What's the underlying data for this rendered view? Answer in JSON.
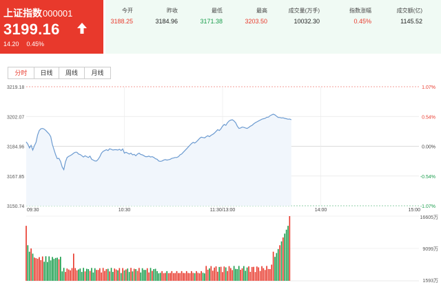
{
  "quote": {
    "name": "上证指数",
    "code": "000001",
    "price": "3199.16",
    "change": "14.20",
    "change_pct": "0.45%",
    "trend_icon": "up-arrow-icon",
    "bg_color": "#e8392c"
  },
  "stats": [
    {
      "label": "今开",
      "value": "3188.25",
      "color": "#e8392c"
    },
    {
      "label": "昨收",
      "value": "3184.96",
      "color": "#222222"
    },
    {
      "label": "最低",
      "value": "3171.38",
      "color": "#1a9d4c"
    },
    {
      "label": "最高",
      "value": "3203.50",
      "color": "#e8392c"
    },
    {
      "label": "成交量(万手)",
      "value": "10032.30",
      "color": "#222222"
    },
    {
      "label": "指数涨幅",
      "value": "0.45%",
      "color": "#e8392c"
    },
    {
      "label": "成交额(亿)",
      "value": "1145.52",
      "color": "#222222"
    }
  ],
  "tabs": [
    {
      "label": "分时",
      "active": true
    },
    {
      "label": "日线",
      "active": false
    },
    {
      "label": "周线",
      "active": false
    },
    {
      "label": "月线",
      "active": false
    }
  ],
  "colors": {
    "up": "#e8392c",
    "down": "#1a9d4c",
    "line": "#6b9ad0",
    "fill": "#f1f6fc"
  },
  "chart_data": {
    "type": "line",
    "price_ticks": [
      "3219.18",
      "3202.07",
      "3184.96",
      "3167.85",
      "3150.74"
    ],
    "pct_ticks": [
      "1.07%",
      "0.54%",
      "0.00%",
      "-0.54%",
      "-1.07%"
    ],
    "time_ticks": [
      "09:30",
      "10:30",
      "11:30/13:00",
      "14:00",
      "15:00"
    ],
    "ylim": [
      3150.74,
      3219.18
    ],
    "prev_close": 3184.96,
    "volume_ticks": [
      "16605万",
      "9099万",
      "1593万"
    ],
    "volume_max": 16605,
    "price_line": [
      [
        0,
        3187.5
      ],
      [
        1,
        3186.2
      ],
      [
        2,
        3184.0
      ],
      [
        3,
        3185.5
      ],
      [
        4,
        3182.8
      ],
      [
        5,
        3185.2
      ],
      [
        6,
        3187.2
      ],
      [
        7,
        3191.5
      ],
      [
        8,
        3194.0
      ],
      [
        9,
        3195.0
      ],
      [
        10,
        3195.2
      ],
      [
        11,
        3194.8
      ],
      [
        12,
        3194.0
      ],
      [
        13,
        3193.0
      ],
      [
        14,
        3192.0
      ],
      [
        15,
        3190.5
      ],
      [
        16,
        3186.0
      ],
      [
        17,
        3183.0
      ],
      [
        18,
        3180.0
      ],
      [
        19,
        3177.8
      ],
      [
        20,
        3178.0
      ],
      [
        21,
        3176.2
      ],
      [
        22,
        3173.0
      ],
      [
        23,
        3171.5
      ],
      [
        24,
        3176.0
      ],
      [
        25,
        3178.5
      ],
      [
        26,
        3179.2
      ],
      [
        27,
        3179.6
      ],
      [
        28,
        3180.2
      ],
      [
        29,
        3181.0
      ],
      [
        30,
        3181.5
      ],
      [
        31,
        3181.5
      ],
      [
        32,
        3180.5
      ],
      [
        33,
        3180.2
      ],
      [
        34,
        3179.5
      ],
      [
        35,
        3178.8
      ],
      [
        36,
        3179.5
      ],
      [
        37,
        3179.0
      ],
      [
        38,
        3178.5
      ],
      [
        39,
        3179.3
      ],
      [
        40,
        3177.5
      ],
      [
        41,
        3177.0
      ],
      [
        42,
        3176.5
      ],
      [
        43,
        3176.5
      ],
      [
        44,
        3177.5
      ],
      [
        45,
        3179.0
      ],
      [
        46,
        3181.0
      ],
      [
        47,
        3182.0
      ],
      [
        48,
        3182.5
      ],
      [
        49,
        3183.0
      ],
      [
        50,
        3182.5
      ],
      [
        51,
        3183.5
      ],
      [
        52,
        3183.2
      ],
      [
        53,
        3182.8
      ],
      [
        54,
        3183.0
      ],
      [
        55,
        3183.0
      ],
      [
        56,
        3182.8
      ],
      [
        57,
        3183.2
      ],
      [
        58,
        3182.5
      ],
      [
        59,
        3183.4
      ],
      [
        60,
        3181.0
      ],
      [
        61,
        3181.5
      ],
      [
        62,
        3181.0
      ],
      [
        63,
        3180.5
      ],
      [
        64,
        3181.0
      ],
      [
        65,
        3180.0
      ],
      [
        66,
        3180.3
      ],
      [
        67,
        3179.5
      ],
      [
        68,
        3180.5
      ],
      [
        69,
        3181.0
      ],
      [
        70,
        3180.2
      ],
      [
        71,
        3180.0
      ],
      [
        72,
        3179.5
      ],
      [
        73,
        3179.0
      ],
      [
        74,
        3179.0
      ],
      [
        75,
        3179.3
      ],
      [
        76,
        3178.8
      ],
      [
        77,
        3179.0
      ],
      [
        78,
        3178.5
      ],
      [
        79,
        3177.8
      ],
      [
        80,
        3177.5
      ],
      [
        81,
        3176.5
      ],
      [
        82,
        3176.3
      ],
      [
        83,
        3176.5
      ],
      [
        84,
        3177.0
      ],
      [
        85,
        3177.3
      ],
      [
        86,
        3177.0
      ],
      [
        87,
        3177.2
      ],
      [
        88,
        3177.5
      ],
      [
        89,
        3178.0
      ],
      [
        90,
        3178.2
      ],
      [
        91,
        3178.5
      ],
      [
        92,
        3178.5
      ],
      [
        93,
        3179.0
      ],
      [
        94,
        3180.0
      ],
      [
        95,
        3180.5
      ],
      [
        96,
        3181.5
      ],
      [
        97,
        3182.5
      ],
      [
        98,
        3183.5
      ],
      [
        99,
        3184.5
      ],
      [
        100,
        3185.5
      ],
      [
        101,
        3186.5
      ],
      [
        102,
        3187.2
      ],
      [
        103,
        3186.8
      ],
      [
        104,
        3187.5
      ],
      [
        105,
        3188.5
      ],
      [
        106,
        3189.5
      ],
      [
        107,
        3190.2
      ],
      [
        108,
        3190.0
      ],
      [
        109,
        3189.8
      ],
      [
        110,
        3190.5
      ],
      [
        111,
        3191.0
      ],
      [
        112,
        3190.5
      ],
      [
        113,
        3191.3
      ],
      [
        114,
        3191.8
      ],
      [
        115,
        3192.5
      ],
      [
        116,
        3193.5
      ],
      [
        117,
        3194.5
      ],
      [
        118,
        3194.0
      ],
      [
        119,
        3195.0
      ],
      [
        120,
        3196.5
      ],
      [
        121,
        3197.5
      ],
      [
        122,
        3197.0
      ],
      [
        123,
        3198.5
      ],
      [
        124,
        3199.5
      ],
      [
        125,
        3200.0
      ],
      [
        126,
        3200.2
      ],
      [
        127,
        3199.5
      ],
      [
        128,
        3198.5
      ],
      [
        129,
        3196.5
      ],
      [
        130,
        3195.2
      ],
      [
        131,
        3195.5
      ],
      [
        132,
        3196.0
      ],
      [
        133,
        3195.8
      ],
      [
        134,
        3195.5
      ],
      [
        135,
        3195.2
      ],
      [
        136,
        3195.8
      ],
      [
        137,
        3196.5
      ],
      [
        138,
        3197.0
      ],
      [
        139,
        3197.8
      ],
      [
        140,
        3198.5
      ],
      [
        141,
        3199.0
      ],
      [
        142,
        3199.5
      ],
      [
        143,
        3200.0
      ],
      [
        144,
        3200.5
      ],
      [
        145,
        3200.8
      ],
      [
        146,
        3201.0
      ],
      [
        147,
        3201.6
      ],
      [
        148,
        3201.7
      ],
      [
        149,
        3202.5
      ],
      [
        150,
        3203.0
      ],
      [
        151,
        3203.4
      ],
      [
        152,
        3203.0
      ],
      [
        153,
        3202.2
      ],
      [
        154,
        3201.5
      ],
      [
        155,
        3201.5
      ],
      [
        156,
        3201.2
      ],
      [
        157,
        3201.3
      ],
      [
        158,
        3201.0
      ],
      [
        159,
        3200.8
      ],
      [
        160,
        3200.5
      ],
      [
        161,
        3200.6
      ],
      [
        162,
        3200.2
      ]
    ]
  }
}
